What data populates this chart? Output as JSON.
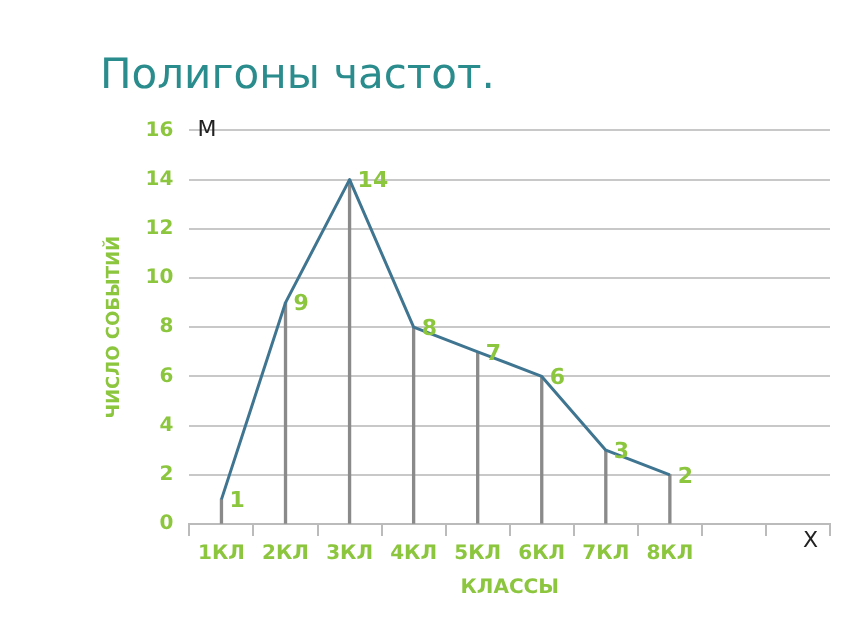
{
  "chart_data": {
    "type": "line",
    "title": "Полигоны частот.",
    "xlabel": "КЛАССЫ",
    "ylabel": "ЧИСЛО СОБЫТИЙ",
    "categories": [
      "1КЛ",
      "2КЛ",
      "3КЛ",
      "4КЛ",
      "5КЛ",
      "6КЛ",
      "7КЛ",
      "8КЛ",
      null,
      null
    ],
    "series": [
      {
        "color": "#3f7590",
        "values": [
          1,
          9,
          14,
          8,
          7,
          6,
          3,
          2,
          null,
          null
        ],
        "value_labels": [
          "1",
          "9",
          "14",
          "8",
          "7",
          "6",
          "3",
          "2",
          null,
          null
        ]
      },
      {
        "type": "bar",
        "color": "#8a8a8a",
        "values": [
          1,
          9,
          14,
          8,
          7,
          6,
          3,
          2,
          null,
          null
        ]
      }
    ],
    "ylim": [
      0,
      16
    ],
    "yticks": [
      0,
      2,
      4,
      6,
      8,
      10,
      12,
      14,
      16
    ],
    "grid": "y",
    "legend": false,
    "marker": "none",
    "line_style": "solid",
    "annotations": [
      "М",
      "Х"
    ]
  }
}
